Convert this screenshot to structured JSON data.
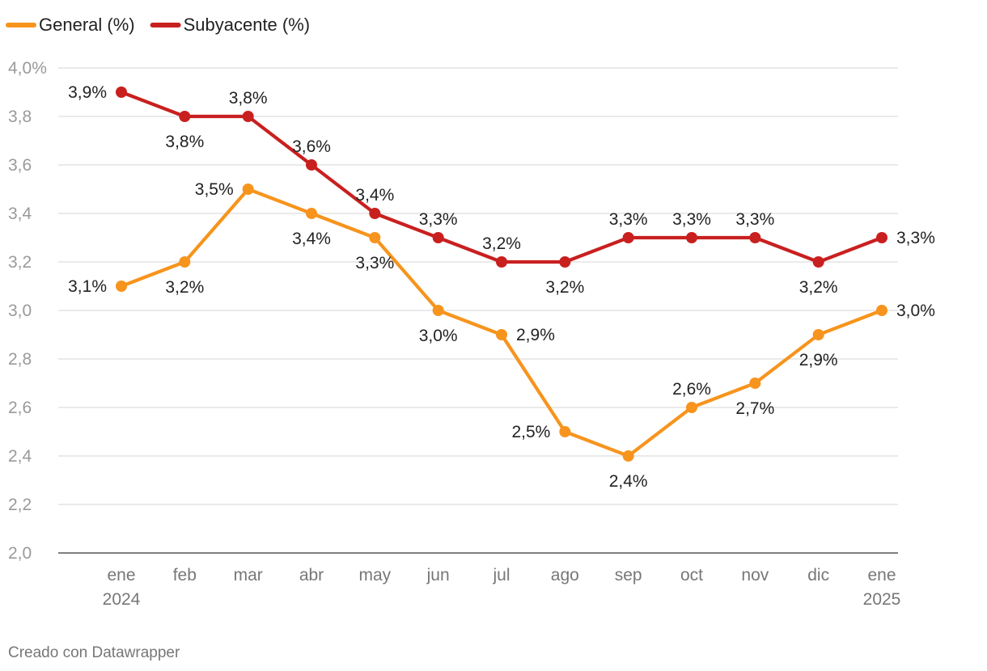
{
  "chart_data": {
    "type": "line",
    "categories": [
      "ene",
      "feb",
      "mar",
      "abr",
      "may",
      "jun",
      "jul",
      "ago",
      "sep",
      "oct",
      "nov",
      "dic",
      "ene"
    ],
    "category_years": [
      "2024",
      "",
      "",
      "",
      "",
      "",
      "",
      "",
      "",
      "",
      "",
      "",
      "2025"
    ],
    "series": [
      {
        "name": "General (%)",
        "color": "#f7941d",
        "values": [
          3.1,
          3.2,
          3.5,
          3.4,
          3.3,
          3.0,
          2.9,
          2.5,
          2.4,
          2.6,
          2.7,
          2.9,
          3.0
        ],
        "labels": [
          "3,1%",
          "3,2%",
          "3,5%",
          "3,4%",
          "3,3%",
          "3,0%",
          "2,9%",
          "2,5%",
          "2,4%",
          "2,6%",
          "2,7%",
          "2,9%",
          "3,0%"
        ],
        "label_pos": [
          "left",
          "below",
          "left",
          "below",
          "below",
          "below",
          "right",
          "left",
          "below",
          "above",
          "below",
          "below",
          "right"
        ]
      },
      {
        "name": "Subyacente (%)",
        "color": "#c8201f",
        "values": [
          3.9,
          3.8,
          3.8,
          3.6,
          3.4,
          3.3,
          3.2,
          3.2,
          3.3,
          3.3,
          3.3,
          3.2,
          3.3
        ],
        "labels": [
          "3,9%",
          "3,8%",
          "3,8%",
          "3,6%",
          "3,4%",
          "3,3%",
          "3,2%",
          "3,2%",
          "3,3%",
          "3,3%",
          "3,3%",
          "3,2%",
          "3,3%"
        ],
        "label_pos": [
          "left",
          "below",
          "above",
          "above",
          "above",
          "above",
          "above",
          "below",
          "above",
          "above",
          "above",
          "below",
          "right"
        ]
      }
    ],
    "ylim": [
      2.0,
      4.0
    ],
    "yticks": [
      2.0,
      2.2,
      2.4,
      2.6,
      2.8,
      3.0,
      3.2,
      3.4,
      3.6,
      3.8,
      4.0
    ],
    "ytick_labels": [
      "2,0",
      "2,2",
      "2,4",
      "2,6",
      "2,8",
      "3,0",
      "3,2",
      "3,4",
      "3,6",
      "3,8",
      "4,0%"
    ],
    "title": "",
    "xlabel": "",
    "ylabel": "",
    "grid": true,
    "legend": "top-left"
  },
  "credit": "Creado con Datawrapper"
}
